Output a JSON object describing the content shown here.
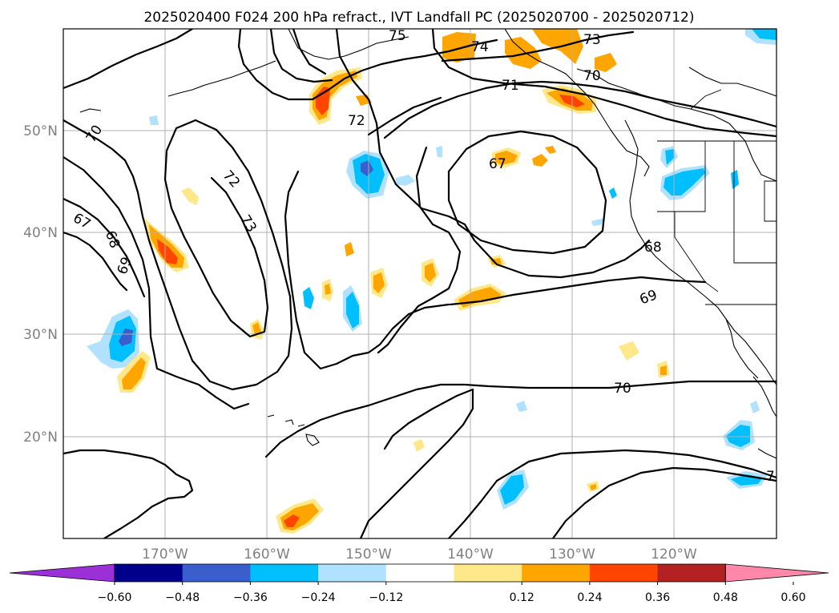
{
  "title": "2025020400 F024 200 hPa refract., IVT Landfall PC (2025020700 - 2025020712)",
  "lat_labels": [
    "50°N",
    "40°N",
    "30°N",
    "20°N"
  ],
  "lon_labels": [
    "170°W",
    "160°W",
    "150°W",
    "140°W",
    "130°W",
    "120°W"
  ],
  "colorbar": {
    "tick_labels": [
      "−0.60",
      "−0.48",
      "−0.36",
      "−0.24",
      "−0.12",
      "0.12",
      "0.24",
      "0.36",
      "0.48",
      "0.60"
    ],
    "colors": [
      "#9b30d9",
      "#00008b",
      "#3a5fcd",
      "#00bfff",
      "#b0e2ff",
      "#ffffff",
      "#ffe88a",
      "#ffa500",
      "#ff4500",
      "#b22222",
      "#ff88aa"
    ]
  },
  "contour_labels": [
    "75",
    "74",
    "73",
    "70",
    "71",
    "72",
    "70",
    "67",
    "68",
    "69",
    "72",
    "73",
    "67",
    "68",
    "69",
    "70",
    "7"
  ],
  "colors": {
    "blue_light": "#b0e2ff",
    "blue": "#00bfff",
    "blue_mid": "#3a5fcd",
    "yellow": "#ffe88a",
    "orange": "#ffa500",
    "red_orange": "#ff4500",
    "grid": "#b0b0b0"
  }
}
